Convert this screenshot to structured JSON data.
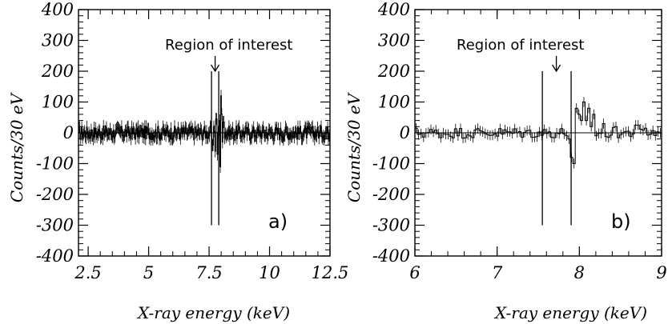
{
  "chart_data": [
    {
      "type": "histogram",
      "panel_label": "a)",
      "annotation": "Region of interest",
      "xlabel": "X-ray energy (keV)",
      "ylabel": "Counts/30 eV",
      "xlim": [
        2.1,
        12.5
      ],
      "ylim": [
        -400,
        400
      ],
      "xticks": [
        2.5,
        5,
        7.5,
        10,
        12.5
      ],
      "xtick_labels": [
        "2.5",
        "5",
        "7.5",
        "10",
        "12.5"
      ],
      "yticks": [
        -400,
        -300,
        -200,
        -100,
        0,
        100,
        200,
        300,
        400
      ],
      "ytick_labels": [
        "-400",
        "-300",
        "-200",
        "-100",
        "0",
        "100",
        "200",
        "300",
        "400"
      ],
      "region_lines": [
        7.6,
        7.9
      ],
      "region_line_range": [
        -300,
        200
      ],
      "arrow_x": 7.75,
      "bin_width_keV": 0.03,
      "noise_amplitude": 22,
      "features": [
        {
          "x": 7.65,
          "y": -40
        },
        {
          "x": 7.7,
          "y": 20
        },
        {
          "x": 7.75,
          "y": -60
        },
        {
          "x": 7.8,
          "y": 45
        },
        {
          "x": 7.85,
          "y": -70
        },
        {
          "x": 7.95,
          "y": 40
        },
        {
          "x": 7.98,
          "y": -110
        },
        {
          "x": 8.01,
          "y": 120
        },
        {
          "x": 8.04,
          "y": 60
        },
        {
          "x": 8.07,
          "y": -30
        },
        {
          "x": 8.1,
          "y": 35
        }
      ]
    },
    {
      "type": "histogram",
      "panel_label": "b)",
      "annotation": "Region of interest",
      "xlabel": "X-ray energy (keV)",
      "ylabel": "Counts/30 eV",
      "xlim": [
        6,
        9
      ],
      "ylim": [
        -400,
        400
      ],
      "xticks": [
        6,
        7,
        8,
        9
      ],
      "xtick_labels": [
        "6",
        "7",
        "8",
        "9"
      ],
      "yticks": [
        -400,
        -300,
        -200,
        -100,
        0,
        100,
        200,
        300,
        400
      ],
      "ytick_labels": [
        "-400",
        "-300",
        "-200",
        "-100",
        "0",
        "100",
        "200",
        "300",
        "400"
      ],
      "region_lines": [
        7.55,
        7.9
      ],
      "region_line_range": [
        -300,
        200
      ],
      "arrow_x": 7.72,
      "bin_width_keV": 0.03,
      "noise_amplitude": 18,
      "features": [
        {
          "x": 7.88,
          "y": -20
        },
        {
          "x": 7.91,
          "y": -80
        },
        {
          "x": 7.94,
          "y": -100
        },
        {
          "x": 7.97,
          "y": 80
        },
        {
          "x": 8.0,
          "y": 60
        },
        {
          "x": 8.03,
          "y": 40
        },
        {
          "x": 8.06,
          "y": 100
        },
        {
          "x": 8.09,
          "y": 40
        },
        {
          "x": 8.12,
          "y": 80
        },
        {
          "x": 8.15,
          "y": 20
        },
        {
          "x": 8.18,
          "y": 60
        },
        {
          "x": 8.21,
          "y": -10
        },
        {
          "x": 8.3,
          "y": 30
        },
        {
          "x": 8.45,
          "y": 20
        },
        {
          "x": 8.7,
          "y": 25
        },
        {
          "x": 8.8,
          "y": 15
        }
      ]
    }
  ]
}
